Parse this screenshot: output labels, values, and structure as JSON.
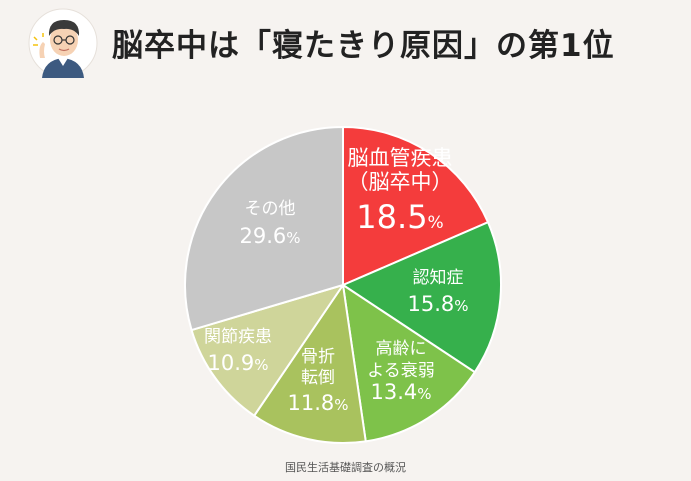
{
  "header": {
    "title": "脳卒中は「寝たきり原因」の第1位",
    "avatar_icon": "doctor-avatar-pointing-icon"
  },
  "chart_data": {
    "type": "pie",
    "title": "脳卒中は「寝たきり原因」の第1位",
    "source": "国民生活基礎調査の概況",
    "unit": "%",
    "slices": [
      {
        "name": "脳血管疾患",
        "sublabel": "（脳卒中）",
        "value": 18.5,
        "display": "18.5",
        "color": "#f43c3c"
      },
      {
        "name": "認知症",
        "value": 15.8,
        "display": "15.8",
        "color": "#36b04c"
      },
      {
        "name": "高齢による衰弱",
        "name_lines": [
          "高齢に",
          "よる衰弱"
        ],
        "value": 13.4,
        "display": "13.4",
        "color": "#7ec24a"
      },
      {
        "name": "骨折転倒",
        "name_lines": [
          "骨折",
          "転倒"
        ],
        "value": 11.8,
        "display": "11.8",
        "color": "#a9c25e"
      },
      {
        "name": "関節疾患",
        "value": 10.9,
        "display": "10.9",
        "color": "#cfd59a"
      },
      {
        "name": "その他",
        "value": 29.6,
        "display": "29.6",
        "color": "#c7c7c7"
      }
    ]
  }
}
